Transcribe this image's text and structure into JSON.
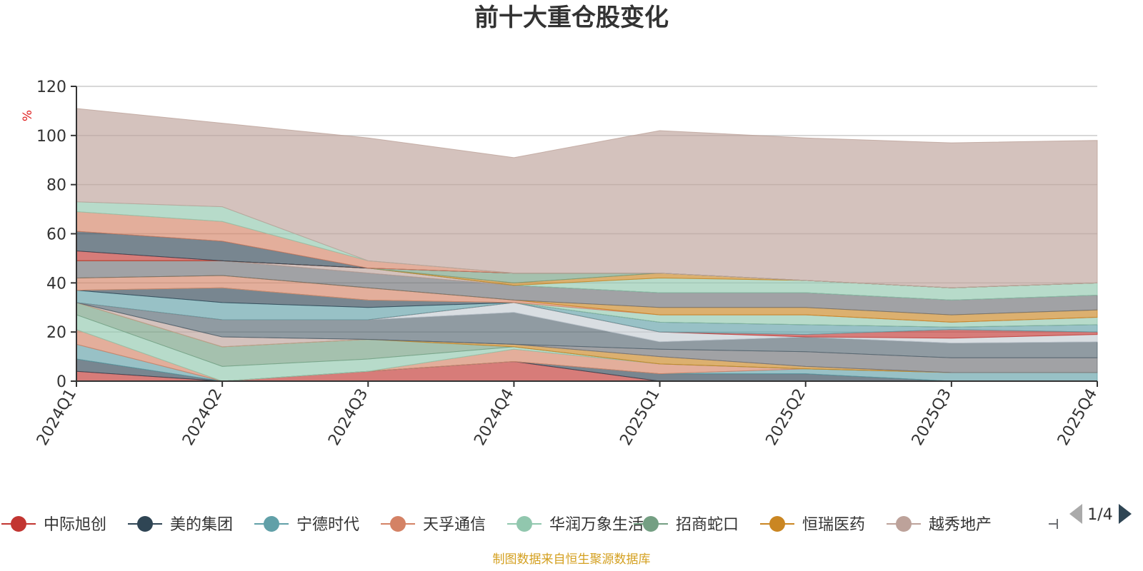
{
  "chart_data": {
    "type": "area",
    "stacked": true,
    "title": "前十大重仓股变化",
    "ylabel": "%",
    "x": [
      "2024Q1",
      "2024Q2",
      "2024Q3",
      "2024Q4",
      "2025Q1",
      "2025Q2",
      "2025Q3",
      "2025Q4"
    ],
    "ylim": [
      0,
      120
    ],
    "yticks": [
      0,
      20,
      40,
      60,
      80,
      100,
      120
    ],
    "grid": true,
    "legend_position": "bottom",
    "legend_page": "1/4",
    "series": [
      {
        "name": "中际旭创",
        "color": "#c23531",
        "values": [
          4,
          0,
          4,
          8,
          0,
          0,
          0,
          0
        ]
      },
      {
        "name": "美的集团",
        "color": "#2f4554",
        "values": [
          5,
          0,
          0,
          0,
          3,
          3,
          0,
          0
        ]
      },
      {
        "name": "宁德时代",
        "color": "#61a0a8",
        "values": [
          6,
          0,
          0,
          0,
          0,
          2,
          3.5,
          3.5
        ]
      },
      {
        "name": "天孚通信",
        "color": "#d48265",
        "values": [
          6,
          0,
          0,
          5,
          4,
          0,
          0,
          0
        ]
      },
      {
        "name": "华润万象生活",
        "color": "#91c7ae",
        "values": [
          6,
          6,
          5,
          1,
          0,
          0,
          0,
          0
        ]
      },
      {
        "name": "招商蛇口",
        "color": "#749f83",
        "values": [
          5,
          8,
          8,
          0,
          0,
          0,
          0,
          0
        ]
      },
      {
        "name": "恒瑞医药",
        "color": "#ca8622",
        "values": [
          0,
          0,
          0,
          1,
          3,
          1,
          0,
          0
        ]
      },
      {
        "name": "越秀地产",
        "color": "#bda29a",
        "values": [
          0,
          4,
          0,
          0,
          0,
          0,
          0,
          0
        ]
      },
      {
        "name": "",
        "color": "#6e7074",
        "values": [
          0,
          0,
          0,
          0,
          3,
          6,
          6,
          6
        ]
      },
      {
        "name": "",
        "color": "#546570",
        "values": [
          0,
          7,
          8,
          13,
          3,
          6,
          6,
          6.5
        ]
      },
      {
        "name": "",
        "color": "#c4ccd3",
        "values": [
          0,
          0,
          0,
          4,
          4,
          0,
          2,
          3
        ]
      },
      {
        "name": "",
        "color": "#c23531",
        "values": [
          0,
          0,
          0,
          0,
          0,
          1,
          3.5,
          1
        ]
      },
      {
        "name": "",
        "color": "#61a0a8",
        "values": [
          5,
          7,
          5,
          0,
          4,
          4,
          1,
          3
        ]
      },
      {
        "name": "",
        "color": "#2f4554",
        "values": [
          0,
          6,
          3,
          0,
          0,
          0,
          0,
          0
        ]
      },
      {
        "name": "",
        "color": "#91c7ae",
        "values": [
          0,
          0,
          0,
          0,
          3,
          4,
          2,
          3
        ]
      },
      {
        "name": "",
        "color": "#d48265",
        "values": [
          5,
          5,
          5,
          1,
          0,
          0,
          0,
          0
        ]
      },
      {
        "name": "",
        "color": "#ca8622",
        "values": [
          0,
          0,
          0,
          0,
          3,
          3,
          3,
          3
        ]
      },
      {
        "name": "",
        "color": "#6e7074",
        "values": [
          7,
          6,
          6,
          6,
          6,
          6,
          6,
          6
        ]
      },
      {
        "name": "",
        "color": "#bda29a",
        "values": [
          0,
          0,
          2,
          0,
          0,
          0,
          0,
          0
        ]
      },
      {
        "name": "",
        "color": "#546570",
        "values": [
          0,
          0,
          0,
          0,
          0,
          0,
          0,
          0
        ]
      },
      {
        "name": "",
        "color": "#91c7ae",
        "values": [
          0,
          0,
          0,
          0,
          6,
          5,
          5,
          5
        ]
      },
      {
        "name": "",
        "color": "#ca8622",
        "values": [
          0,
          0,
          0,
          1,
          2,
          0,
          0,
          0
        ]
      },
      {
        "name": "",
        "color": "#749f83",
        "values": [
          0,
          0,
          0,
          4,
          0,
          0,
          0,
          0
        ]
      },
      {
        "name": "",
        "color": "#c23531",
        "values": [
          4,
          0,
          0,
          0,
          0,
          0,
          0,
          0
        ]
      },
      {
        "name": "",
        "color": "#2f4554",
        "values": [
          8,
          8,
          0,
          0,
          0,
          0,
          0,
          0
        ]
      },
      {
        "name": "",
        "color": "#d48265",
        "values": [
          8,
          8,
          3,
          0,
          0,
          0,
          0,
          0
        ]
      },
      {
        "name": "",
        "color": "#91c7ae",
        "values": [
          4,
          6,
          0,
          0,
          0,
          0,
          0,
          0
        ]
      },
      {
        "name": "",
        "color": "#bda29a",
        "values": [
          38,
          34,
          50,
          47,
          58,
          58,
          59,
          58
        ]
      }
    ]
  },
  "footer": {
    "source": "制图数据来自恒生聚源数据库"
  }
}
